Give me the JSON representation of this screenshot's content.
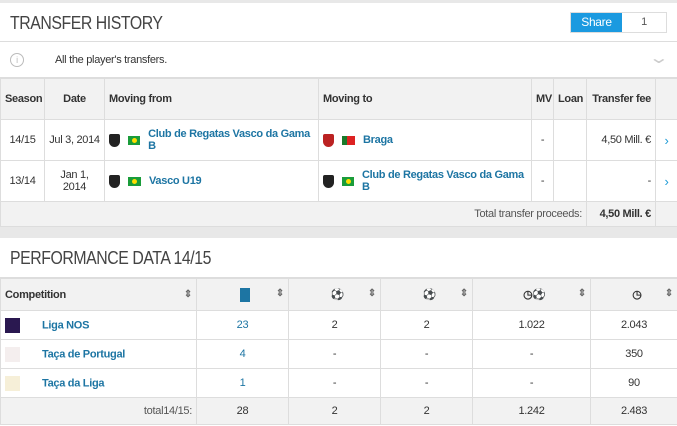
{
  "transfer_history": {
    "title": "TRANSFER HISTORY",
    "share_label": "Share",
    "share_count": "1",
    "info_text": "All the player's transfers.",
    "columns": [
      "Season",
      "Date",
      "Moving from",
      "Moving to",
      "MV",
      "Loan",
      "Transfer fee"
    ],
    "rows": [
      {
        "season": "14/15",
        "date": "Jul 3, 2014",
        "from": "Club de Regatas Vasco da Gama B",
        "from_flag": "Brazil",
        "to": "Braga",
        "to_flag": "Portugal",
        "mv": "-",
        "loan": "",
        "fee": "4,50 Mill. €"
      },
      {
        "season": "13/14",
        "date": "Jan 1, 2014",
        "from": "Vasco U19",
        "from_flag": "Brazil",
        "to": "Club de Regatas Vasco da Gama B",
        "to_flag": "Brazil",
        "mv": "-",
        "loan": "",
        "fee": "-"
      }
    ],
    "total_label": "Total transfer proceeds:",
    "total_value": "4,50 Mill. €"
  },
  "performance": {
    "title": "PERFORMANCE DATA 14/15",
    "columns": [
      "Competition",
      "appearances-icon",
      "goals-icon",
      "assists-icon",
      "minutes-per-goal-icon",
      "minutes-played-icon"
    ],
    "rows": [
      {
        "competition": "Liga NOS",
        "apps": "23",
        "goals": "2",
        "assists": "2",
        "min_per_goal": "1.022",
        "minutes": "2.043"
      },
      {
        "competition": "Taça de Portugal",
        "apps": "4",
        "goals": "-",
        "assists": "-",
        "min_per_goal": "-",
        "minutes": "350"
      },
      {
        "competition": "Taça da Liga",
        "apps": "1",
        "goals": "-",
        "assists": "-",
        "min_per_goal": "-",
        "minutes": "90"
      }
    ],
    "total": {
      "label": "total14/15:",
      "apps": "28",
      "goals": "2",
      "assists": "2",
      "min_per_goal": "1.242",
      "minutes": "2.483"
    }
  },
  "colors": {
    "accent": "#1b9ae0",
    "link": "#1d75a3"
  }
}
